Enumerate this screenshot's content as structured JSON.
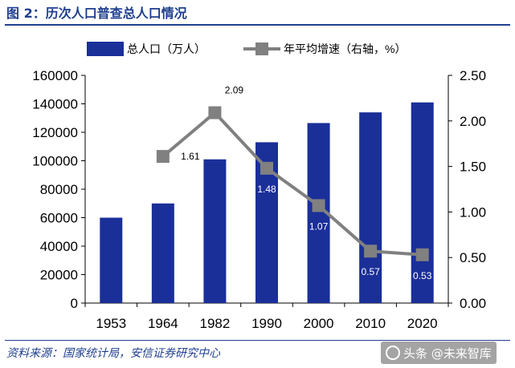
{
  "title": "图 2：历次人口普查总人口情况",
  "source": "资料来源：国家统计局，安信证券研究中心",
  "watermark": "头条 @未来智库",
  "colors": {
    "bar": "#1b2f99",
    "line": "#808080",
    "title": "#1f3f8f"
  },
  "chart_data": {
    "type": "bar",
    "categories": [
      "1953",
      "1964",
      "1982",
      "1990",
      "2000",
      "2010",
      "2020"
    ],
    "series": [
      {
        "name": "总人口（万人）",
        "type": "bar",
        "axis": "left",
        "values": [
          60000,
          70000,
          101000,
          113000,
          126500,
          134000,
          141000
        ]
      },
      {
        "name": "年平均增速（右轴，%）",
        "type": "line",
        "axis": "right",
        "values": [
          null,
          1.61,
          2.09,
          1.48,
          1.07,
          0.57,
          0.53
        ],
        "labels": [
          "",
          "1.61",
          "2.09",
          "1.48",
          "1.07",
          "0.57",
          "0.53"
        ]
      }
    ],
    "y_left": {
      "ylim": [
        0,
        160000
      ],
      "ticks": [
        "0",
        "20000",
        "40000",
        "60000",
        "80000",
        "100000",
        "120000",
        "140000",
        "160000"
      ]
    },
    "y_right": {
      "ylim": [
        0,
        2.5
      ],
      "ticks": [
        "0.00",
        "0.50",
        "1.00",
        "1.50",
        "2.00",
        "2.50"
      ]
    },
    "grid": false,
    "legend_position": "top"
  }
}
